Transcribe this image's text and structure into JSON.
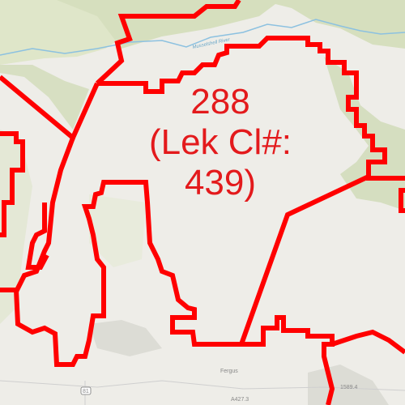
{
  "map": {
    "polygon_label": {
      "line1": "288",
      "line2": "(Lek Cl#:",
      "line3": "439)"
    },
    "place_labels": {
      "town": "Fergus",
      "river": "Musselshell River",
      "road_shield": "81",
      "road_label": "A427.3",
      "elevation": "1589.4"
    },
    "colors": {
      "boundary": "#ff0000",
      "label": "#e31a1c",
      "background": "#eeede8",
      "terrain_green": "#d7dfc2",
      "river": "#8cc1e0"
    }
  }
}
